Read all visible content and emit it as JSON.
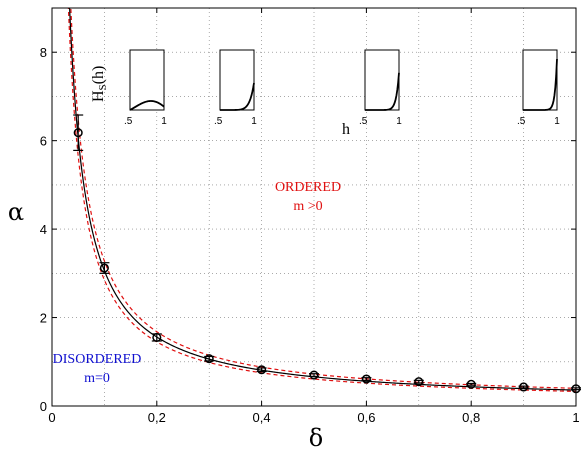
{
  "chart_data": {
    "type": "scatter",
    "xlabel": "δ",
    "ylabel": "α",
    "xlim": [
      0,
      1
    ],
    "ylim": [
      0,
      9
    ],
    "x_ticks": [
      {
        "v": 0,
        "t": "0"
      },
      {
        "v": 0.2,
        "t": "0,2"
      },
      {
        "v": 0.4,
        "t": "0,4"
      },
      {
        "v": 0.6,
        "t": "0,6"
      },
      {
        "v": 0.8,
        "t": "0,8"
      },
      {
        "v": 1,
        "t": "1"
      }
    ],
    "y_ticks": [
      {
        "v": 0,
        "t": "0"
      },
      {
        "v": 2,
        "t": "2"
      },
      {
        "v": 4,
        "t": "4"
      },
      {
        "v": 6,
        "t": "6"
      },
      {
        "v": 8,
        "t": "8"
      }
    ],
    "grid": true,
    "points": [
      {
        "x": 0.05,
        "y": 6.18,
        "err": 0.4
      },
      {
        "x": 0.1,
        "y": 3.12,
        "err": 0.12
      },
      {
        "x": 0.2,
        "y": 1.55,
        "err": 0.08
      },
      {
        "x": 0.3,
        "y": 1.07,
        "err": 0.05
      },
      {
        "x": 0.4,
        "y": 0.82,
        "err": 0.04
      },
      {
        "x": 0.5,
        "y": 0.7,
        "err": 0.03
      },
      {
        "x": 0.6,
        "y": 0.61,
        "err": 0.03
      },
      {
        "x": 0.7,
        "y": 0.55,
        "err": 0.03
      },
      {
        "x": 0.8,
        "y": 0.49,
        "err": 0.02
      },
      {
        "x": 0.9,
        "y": 0.43,
        "err": 0.02
      },
      {
        "x": 1.0,
        "y": 0.39,
        "err": 0.02
      }
    ],
    "fit": {
      "a": 0.3,
      "b": 0.06
    },
    "band": {
      "upper": {
        "a": 0.32,
        "b": 0.08
      },
      "lower": {
        "a": 0.28,
        "b": 0.05
      }
    },
    "colors": {
      "fit": "#000000",
      "band": "#e01010",
      "ordered": "#e01010",
      "disordered": "#1010d0"
    },
    "annotations": {
      "ordered_line1": "ORDERED",
      "ordered_line2": "m >0",
      "disordered_line1": "DISORDERED",
      "disordered_line2": "m=0"
    },
    "insets": {
      "ylabel": "H",
      "ylabel_sub": "S",
      "ylabel_tail": "(h)",
      "xlabel": "h",
      "tick_left": ".5",
      "tick_right": "1",
      "panels": [
        {
          "peak": 0.18
        },
        {
          "peak": 0.45
        },
        {
          "peak": 0.62
        },
        {
          "peak": 0.85
        }
      ]
    }
  }
}
